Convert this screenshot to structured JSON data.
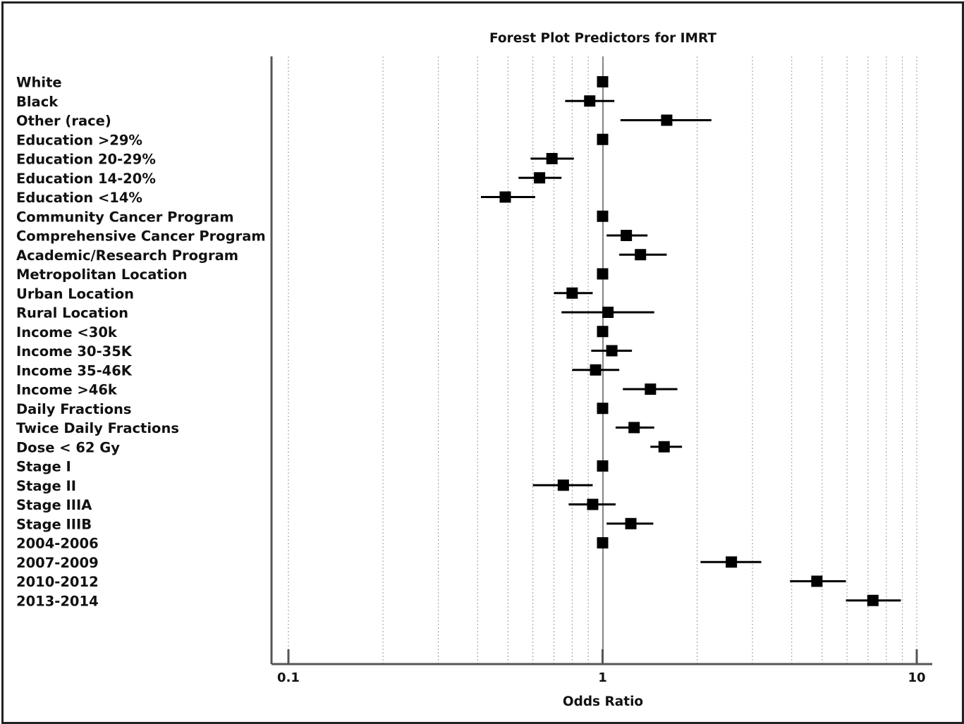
{
  "chart_data": {
    "type": "scatter",
    "title": "Forest Plot Predictors for IMRT",
    "xlabel": "Odds Ratio",
    "ylabel": "",
    "x_scale": "log",
    "xlim": [
      0.1,
      10
    ],
    "x_ticks": [
      "0.1",
      "1",
      "10"
    ],
    "reference_line": 1,
    "grid": "vertical dotted minor gridlines",
    "categories": [
      "White",
      "Black",
      "Other (race)",
      "Education >29%",
      "Education 20-29%",
      "Education 14-20%",
      "Education <14%",
      "Community Cancer Program",
      "Comprehensive Cancer Program",
      "Academic/Research Program",
      "Metropolitan Location",
      "Urban Location",
      "Rural Location",
      "Income <30k",
      "Income 30-35K",
      "Income 35-46K",
      "Income >46k",
      "Daily Fractions",
      "Twice Daily Fractions",
      "Dose < 62 Gy",
      "Stage I",
      "Stage II",
      "Stage IIIA",
      "Stage IIIB",
      "2004-2006",
      "2007-2009",
      "2010-2012",
      "2013-2014"
    ],
    "series": [
      {
        "estimate": [
          1.0,
          0.91,
          1.6,
          1.0,
          0.69,
          0.63,
          0.49,
          1.0,
          1.19,
          1.32,
          1.0,
          0.8,
          1.04,
          1.0,
          1.07,
          0.95,
          1.42,
          1.0,
          1.26,
          1.57,
          1.0,
          0.75,
          0.93,
          1.23,
          1.0,
          2.57,
          4.81,
          7.25
        ],
        "ci_low": [
          1.0,
          0.76,
          1.14,
          1.0,
          0.59,
          0.54,
          0.41,
          1.0,
          1.03,
          1.13,
          1.0,
          0.7,
          0.74,
          1.0,
          0.92,
          0.8,
          1.16,
          1.0,
          1.1,
          1.42,
          1.0,
          0.6,
          0.78,
          1.03,
          1.0,
          2.05,
          3.95,
          5.95
        ],
        "ci_high": [
          1.0,
          1.09,
          2.22,
          1.0,
          0.81,
          0.74,
          0.61,
          1.0,
          1.39,
          1.6,
          1.0,
          0.93,
          1.46,
          1.0,
          1.24,
          1.13,
          1.73,
          1.0,
          1.46,
          1.79,
          1.0,
          0.93,
          1.1,
          1.45,
          1.0,
          3.2,
          5.95,
          8.9
        ]
      }
    ]
  }
}
